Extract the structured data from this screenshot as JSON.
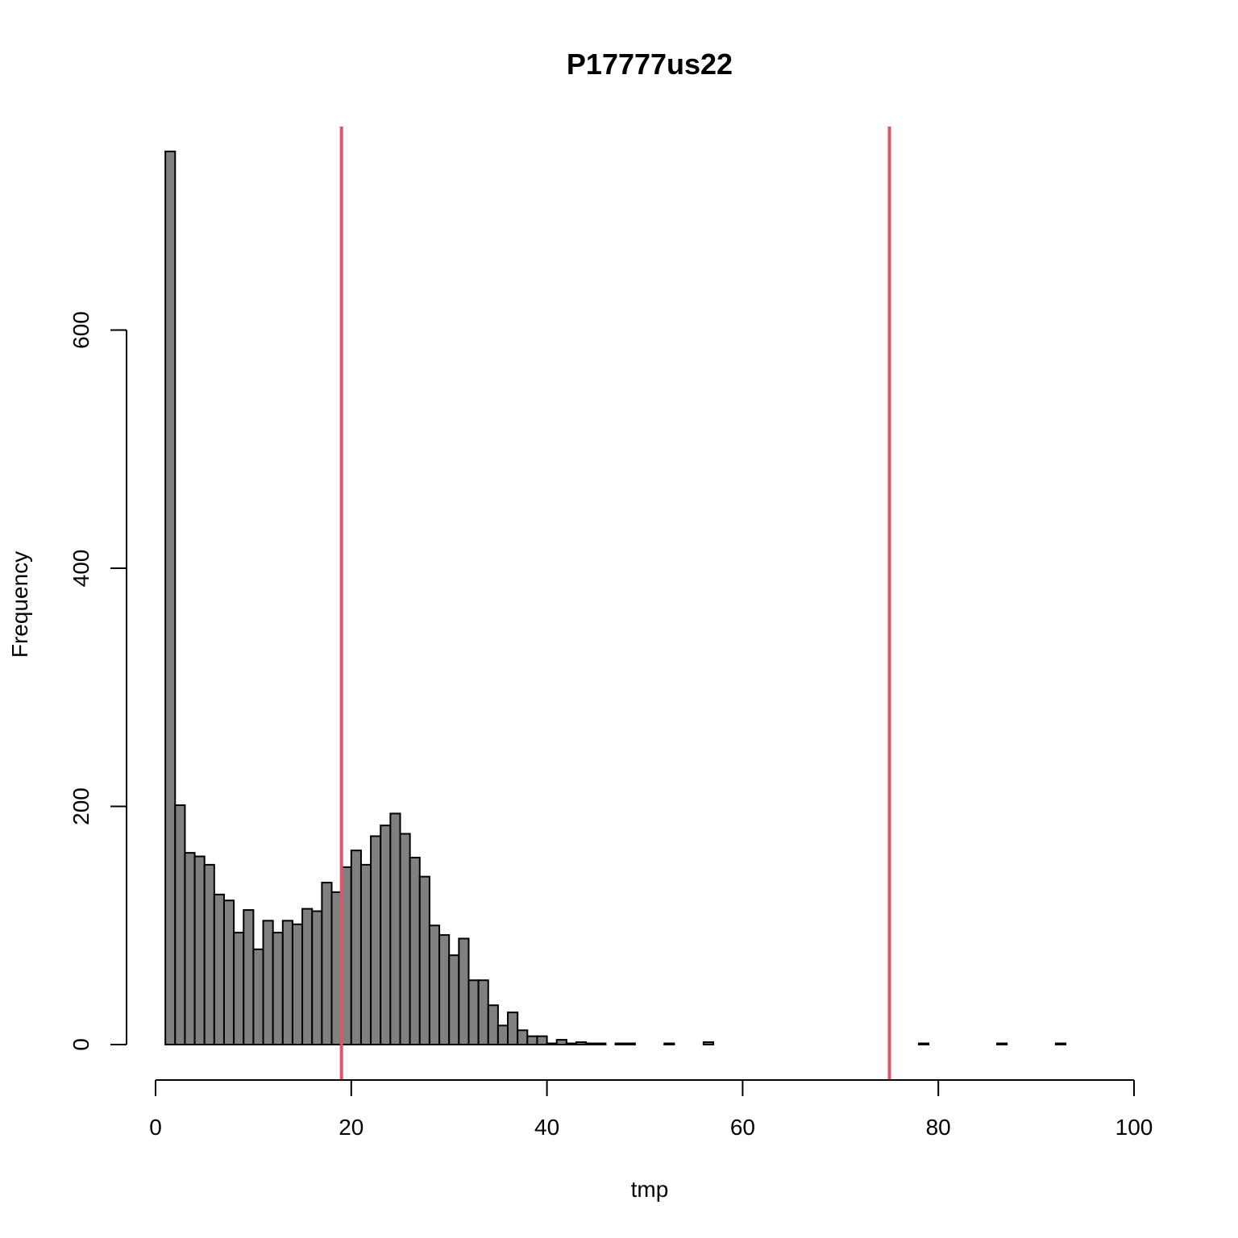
{
  "chart_data": {
    "type": "bar",
    "title": "P17777us22",
    "xlabel": "tmp",
    "ylabel": "Frequency",
    "xlim": [
      0,
      100
    ],
    "ylim": [
      0,
      750
    ],
    "x_ticks": [
      0,
      20,
      40,
      60,
      80,
      100
    ],
    "y_ticks": [
      0,
      200,
      400,
      600
    ],
    "bin_start": 1,
    "bin_width": 1,
    "values": [
      750,
      201,
      161,
      158,
      151,
      126,
      121,
      94,
      113,
      80,
      104,
      94,
      104,
      101,
      114,
      112,
      136,
      128,
      149,
      163,
      151,
      175,
      184,
      194,
      177,
      157,
      141,
      100,
      92,
      75,
      89,
      54,
      54,
      33,
      16,
      27,
      12,
      7,
      7,
      1,
      4,
      1,
      2,
      1,
      1,
      0,
      1,
      1,
      0,
      0,
      0,
      1,
      0,
      0,
      0,
      2,
      0,
      0,
      0,
      0,
      0,
      0,
      0,
      0,
      0,
      0,
      0,
      0,
      0,
      0,
      0,
      0,
      0,
      0,
      0,
      0,
      0,
      1,
      0,
      0,
      0,
      0,
      0,
      0,
      0,
      1,
      0,
      0,
      0,
      0,
      0,
      1,
      0,
      0,
      0,
      0,
      0,
      0,
      0
    ],
    "vlines": [
      19,
      75
    ],
    "vline_color": "#DF536B",
    "bar_color": "#808080",
    "grid": false
  }
}
